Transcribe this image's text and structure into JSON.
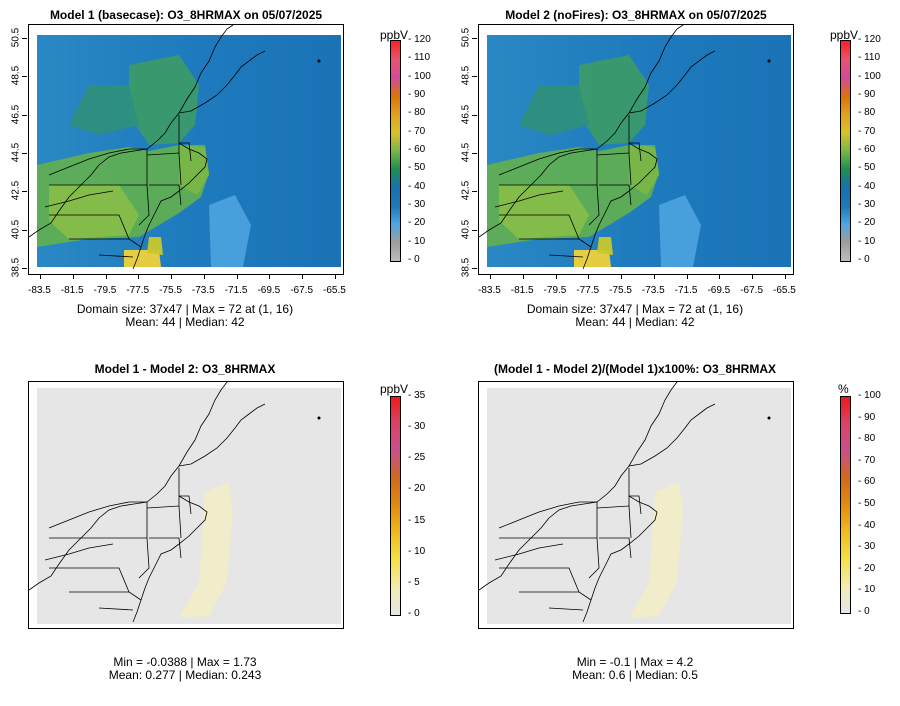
{
  "chart_data": [
    {
      "type": "heatmap",
      "title": "Model 1 (basecase): O3_8HRMAX on 05/07/2025",
      "unit": "ppbV",
      "x_ticks": [
        "-83.5",
        "-81.5",
        "-79.5",
        "-77.5",
        "-75.5",
        "-73.5",
        "-71.5",
        "-69.5",
        "-67.5",
        "-65.5"
      ],
      "y_ticks": [
        "38.5",
        "40.5",
        "42.5",
        "44.5",
        "46.5",
        "48.5",
        "50.5"
      ],
      "colorbar_ticks": [
        "0",
        "10",
        "20",
        "30",
        "40",
        "50",
        "60",
        "70",
        "80",
        "90",
        "100",
        "110",
        "120"
      ],
      "colorbar_range": [
        0,
        120
      ],
      "stats_line1": "Domain size: 37x47 | Max = 72 at (1, 16)",
      "stats_line2": "Mean: 44 |  Median: 42",
      "domain_size": "37x47",
      "max": 72,
      "mean": 44,
      "median": 42
    },
    {
      "type": "heatmap",
      "title": "Model 2 (noFires): O3_8HRMAX on 05/07/2025",
      "unit": "ppbV",
      "x_ticks": [
        "-83.5",
        "-81.5",
        "-79.5",
        "-77.5",
        "-75.5",
        "-73.5",
        "-71.5",
        "-69.5",
        "-67.5",
        "-65.5"
      ],
      "y_ticks": [
        "38.5",
        "40.5",
        "42.5",
        "44.5",
        "46.5",
        "48.5",
        "50.5"
      ],
      "colorbar_ticks": [
        "0",
        "10",
        "20",
        "30",
        "40",
        "50",
        "60",
        "70",
        "80",
        "90",
        "100",
        "110",
        "120"
      ],
      "colorbar_range": [
        0,
        120
      ],
      "stats_line1": "Domain size: 37x47 | Max = 72 at (1, 16)",
      "stats_line2": "Mean: 44 |  Median: 42",
      "domain_size": "37x47",
      "max": 72,
      "mean": 44,
      "median": 42
    },
    {
      "type": "heatmap",
      "title": "Model 1 - Model 2: O3_8HRMAX",
      "unit": "ppbV",
      "colorbar_ticks": [
        "0",
        "5",
        "10",
        "15",
        "20",
        "25",
        "30",
        "35"
      ],
      "colorbar_range": [
        0,
        35
      ],
      "stats_line1": "Min = -0.0388 | Max = 1.73",
      "stats_line2": "Mean: 0.277 |  Median: 0.243",
      "min": -0.0388,
      "max": 1.73,
      "mean": 0.277,
      "median": 0.243
    },
    {
      "type": "heatmap",
      "title": "(Model 1 - Model 2)/(Model 1)x100%: O3_8HRMAX",
      "unit": "%",
      "colorbar_ticks": [
        "0",
        "10",
        "20",
        "30",
        "40",
        "50",
        "60",
        "70",
        "80",
        "90",
        "100"
      ],
      "colorbar_range": [
        0,
        100
      ],
      "stats_line1": "Min = -0.1 | Max = 4.2",
      "stats_line2": "Mean: 0.6 |  Median: 0.5",
      "min": -0.1,
      "max": 4.2,
      "mean": 0.6,
      "median": 0.5
    }
  ],
  "colors": {
    "conc_scale": [
      "#bdbdbd",
      "#9e9e9e",
      "#4fa6e0",
      "#1e78b8",
      "#1a6fb0",
      "#1e8f4e",
      "#7ab648",
      "#d8c12a",
      "#e0a020",
      "#d9730b",
      "#d4499a",
      "#e8556f",
      "#ff1e1e"
    ],
    "diff_scale": [
      "#e6e6e6",
      "#f2ecb0",
      "#f5e04a",
      "#f0bb1e",
      "#e08c10",
      "#d2691a",
      "#c8508c",
      "#d94468",
      "#f01818"
    ],
    "land_background": "#e6e6e6"
  }
}
